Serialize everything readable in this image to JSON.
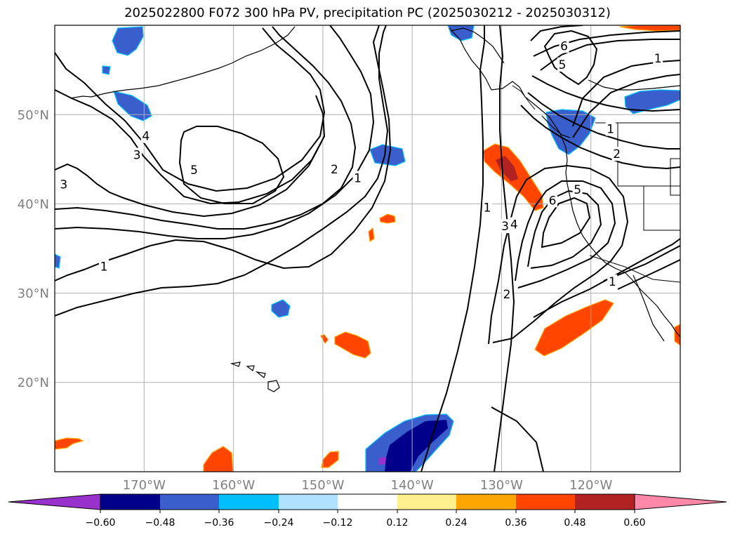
{
  "title": "2025022800 F072 300 hPa PV, precipitation PC (2025030212 - 2025030312)",
  "map": {
    "lon_range": [
      -180,
      -110
    ],
    "lat_range": [
      10,
      60
    ],
    "lon_ticks": [
      -170,
      -160,
      -150,
      -140,
      -130,
      -120
    ],
    "lat_ticks": [
      20,
      30,
      40,
      50
    ],
    "lon_tick_labels": [
      "170°W",
      "160°W",
      "150°W",
      "140°W",
      "130°W",
      "120°W"
    ],
    "lat_tick_labels": [
      "20°N",
      "30°N",
      "40°N",
      "50°N"
    ],
    "grid": true
  },
  "contour_labels": [
    {
      "text": "1",
      "lon": -174.5,
      "lat": 33.0
    },
    {
      "text": "3",
      "lon": -179.0,
      "lat": 42.2
    },
    {
      "text": "3",
      "lon": -170.8,
      "lat": 45.5
    },
    {
      "text": "4",
      "lon": -169.8,
      "lat": 47.6
    },
    {
      "text": "5",
      "lon": -164.4,
      "lat": 43.8
    },
    {
      "text": "2",
      "lon": -148.7,
      "lat": 43.9
    },
    {
      "text": "1",
      "lon": -146.1,
      "lat": 42.9
    },
    {
      "text": "1",
      "lon": -131.6,
      "lat": 39.6
    },
    {
      "text": "3",
      "lon": -129.6,
      "lat": 37.5
    },
    {
      "text": "4",
      "lon": -128.6,
      "lat": 37.7
    },
    {
      "text": "2",
      "lon": -129.4,
      "lat": 29.9
    },
    {
      "text": "6",
      "lon": -124.3,
      "lat": 40.4
    },
    {
      "text": "5",
      "lon": -121.5,
      "lat": 41.6
    },
    {
      "text": "2",
      "lon": -117.1,
      "lat": 45.6
    },
    {
      "text": "1",
      "lon": -117.8,
      "lat": 48.4
    },
    {
      "text": "6",
      "lon": -123.0,
      "lat": 57.7
    },
    {
      "text": "5",
      "lon": -123.2,
      "lat": 55.6
    },
    {
      "text": "1",
      "lon": -112.5,
      "lat": 56.3
    },
    {
      "text": "1",
      "lon": -117.6,
      "lat": 31.3
    }
  ],
  "colorbar": {
    "tick_labels": [
      "−0.60",
      "−0.48",
      "−0.36",
      "−0.24",
      "−0.12",
      "0.12",
      "0.24",
      "0.36",
      "0.48",
      "0.60"
    ],
    "colors": [
      "#9932cc",
      "#00008b",
      "#3a5fcd",
      "#00bfff",
      "#b0e2ff",
      "#ffffff",
      "#fff08f",
      "#ffa500",
      "#ff4500",
      "#b22222",
      "#ff88a8"
    ],
    "extend": "both"
  },
  "colors": {
    "grid": "#b0b0b0",
    "contour": "#000000",
    "tick_label": "#808080"
  }
}
